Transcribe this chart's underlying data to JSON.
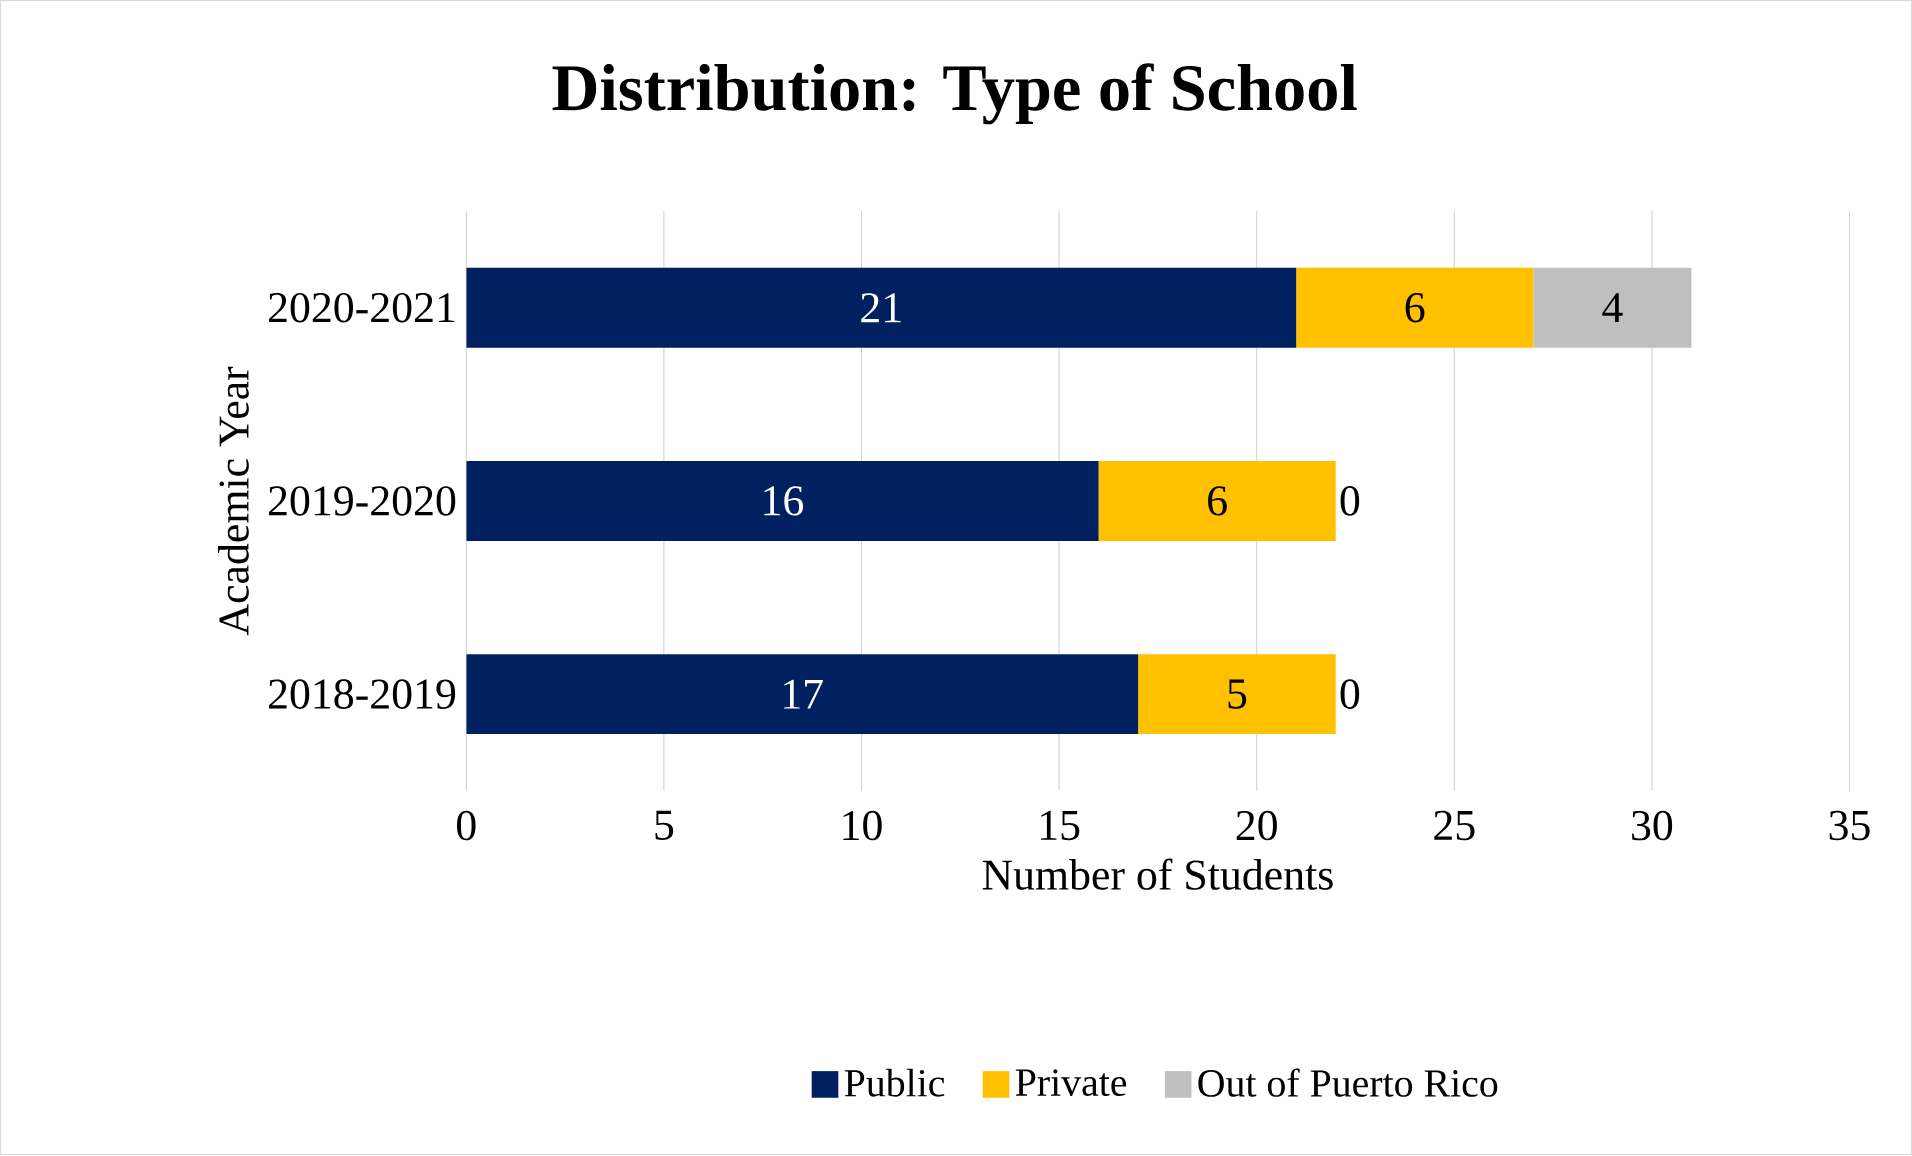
{
  "chart_data": {
    "type": "bar",
    "orientation": "horizontal",
    "stacked": true,
    "title": "Distribution: Type of School",
    "xlabel": "Number of Students",
    "ylabel": "Academic Year",
    "categories": [
      "2020-2021",
      "2019-2020",
      "2018-2019"
    ],
    "series": [
      {
        "name": "Public",
        "color": "#002060",
        "values": [
          21,
          16,
          17
        ]
      },
      {
        "name": "Private",
        "color": "#ffc000",
        "values": [
          6,
          6,
          5
        ]
      },
      {
        "name": "Out of Puerto Rico",
        "color": "#bfbfbf",
        "values": [
          4,
          0,
          0
        ]
      }
    ],
    "xlim": [
      0,
      35
    ],
    "xticks": [
      0,
      5,
      10,
      15,
      20,
      25,
      30,
      35
    ],
    "grid": "x",
    "legend": "bottom",
    "data_labels": true
  }
}
